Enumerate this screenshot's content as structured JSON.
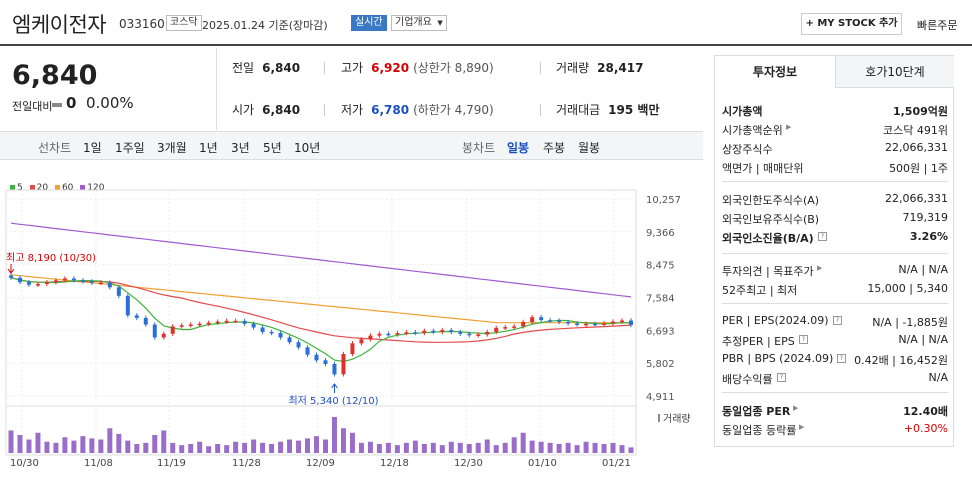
{
  "header": {
    "name": "엠케이전자",
    "code": "033160",
    "market": "코스닥",
    "date": "2025.01.24 기준(장마감)",
    "live": "실시간",
    "company_info": "기업개요",
    "my_stock": "+ MY STOCK 추가",
    "quick_order": "빠른주문"
  },
  "price": {
    "current": "6,840",
    "change_label": "전일대비",
    "change": "0",
    "change_pct": "0.00%"
  },
  "stats": {
    "prev_label": "전일",
    "prev": "6,840",
    "high_label": "고가",
    "high": "6,920",
    "upper_limit": "(상한가 8,890)",
    "volume_label": "거래량",
    "volume": "28,417",
    "open_label": "시가",
    "open": "6,840",
    "low_label": "저가",
    "low": "6,780",
    "lower_limit": "(하한가 4,790)",
    "amount_label": "거래대금",
    "amount": "195 백만"
  },
  "periods": {
    "line_label": "선차트",
    "line": [
      "1일",
      "1주일",
      "3개월",
      "1년",
      "3년",
      "5년",
      "10년"
    ],
    "candle_label": "봉차트",
    "candle": [
      "일봉",
      "주봉",
      "월봉"
    ],
    "selected": "일봉"
  },
  "chart_data": {
    "type": "candlestick",
    "legend": [
      "5",
      "20",
      "60",
      "120"
    ],
    "colors": {
      "ma5": "#3cb43c",
      "ma20": "#e34b4b",
      "ma60": "#f0a030",
      "ma120": "#a05ad0",
      "up": "#e0302a",
      "down": "#2a6fd6",
      "volume": "#9a6ec8"
    },
    "y_ticks": [
      "10,257",
      "9,366",
      "8,475",
      "7,584",
      "6,693",
      "5,802",
      "4,911"
    ],
    "y_range": [
      4911,
      10257
    ],
    "x_labels": [
      "10/30",
      "11/08",
      "11/19",
      "11/28",
      "12/09",
      "12/18",
      "12/30",
      "01/10",
      "01/21"
    ],
    "high_annotation": "최고 8,190 (10/30)",
    "low_annotation": "최저 5,340 (12/10)",
    "volume_label": "거래량",
    "closes": [
      8120,
      8000,
      7930,
      7950,
      8000,
      8050,
      8100,
      8050,
      8020,
      7980,
      7990,
      7860,
      7630,
      7100,
      7030,
      6850,
      6500,
      6600,
      6800,
      6830,
      6850,
      6870,
      6900,
      6930,
      6950,
      6950,
      6870,
      6770,
      6650,
      6620,
      6500,
      6370,
      6230,
      6030,
      5880,
      5780,
      5500,
      6050,
      6340,
      6450,
      6550,
      6600,
      6580,
      6620,
      6640,
      6620,
      6680,
      6650,
      6700,
      6650,
      6600,
      6560,
      6580,
      6650,
      6760,
      6780,
      6800,
      6920,
      7050,
      6970,
      6960,
      6920,
      6880,
      6850,
      6870,
      6860,
      6880,
      6930,
      6960,
      6840
    ],
    "volumes": [
      20,
      16,
      12,
      18,
      10,
      9,
      14,
      11,
      15,
      13,
      12,
      22,
      17,
      11,
      8,
      9,
      16,
      20,
      9,
      7,
      8,
      10,
      6,
      8,
      7,
      10,
      9,
      12,
      9,
      8,
      10,
      12,
      11,
      13,
      15,
      12,
      32,
      22,
      18,
      9,
      10,
      8,
      9,
      7,
      9,
      11,
      8,
      9,
      7,
      10,
      9,
      8,
      9,
      12,
      7,
      9,
      14,
      18,
      11,
      10,
      9,
      8,
      9,
      7,
      10,
      9,
      8,
      9,
      7,
      5
    ]
  },
  "panel": {
    "tab_active": "투자정보",
    "tab_other": "호가10단계",
    "rows": [
      {
        "k": "시가총액",
        "v": "1,509억원",
        "bold": true
      },
      {
        "k": "시가총액순위",
        "v": "코스닥 491위"
      },
      {
        "k": "상장주식수",
        "v": "22,066,331"
      },
      {
        "k": "액면가 | 매매단위",
        "v": "500원 | 1주"
      },
      {
        "k": "외국인한도주식수(A)",
        "v": "22,066,331"
      },
      {
        "k": "외국인보유주식수(B)",
        "v": "719,319"
      },
      {
        "k": "외국인소진율(B/A)",
        "v": "3.26%",
        "bold": true
      },
      {
        "k": "투자의견 | 목표주가",
        "v": "N/A | N/A"
      },
      {
        "k": "52주최고 | 최저",
        "v": "15,000 | 5,340"
      },
      {
        "k": "PER | EPS(2024.09)",
        "v": "N/A | -1,885원"
      },
      {
        "k": "추정PER | EPS",
        "v": "N/A | N/A"
      },
      {
        "k": "PBR | BPS (2024.09)",
        "v": "0.42배 | 16,452원"
      },
      {
        "k": "배당수익률",
        "v": "N/A"
      },
      {
        "k": "동일업종 PER",
        "v": "12.40배",
        "bold": true
      },
      {
        "k": "동일업종 등락률",
        "v": "+0.30%",
        "red": true
      }
    ]
  }
}
